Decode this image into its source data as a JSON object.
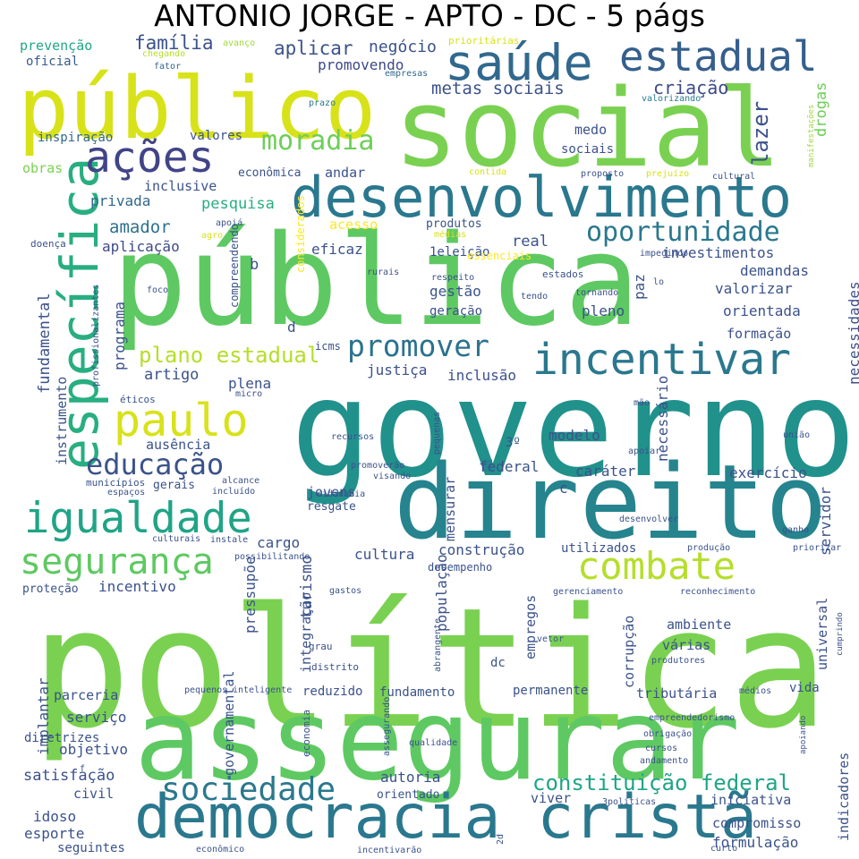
{
  "title": "ANTONIO JORGE - APTO - DC - 5 págs",
  "words": [
    {
      "text": "política",
      "color": "#7ad151"
    },
    {
      "text": "governo",
      "color": "#21918c"
    },
    {
      "text": "social",
      "color": "#7ad151"
    },
    {
      "text": "público",
      "color": "#d8e219"
    },
    {
      "text": "pública",
      "color": "#5ec962"
    },
    {
      "text": "assegurar",
      "color": "#5ec962"
    },
    {
      "text": "direito",
      "color": "#25848e"
    },
    {
      "text": "democracia cristã",
      "color": "#2a788e"
    },
    {
      "text": "desenvolvimento",
      "color": "#2a788e"
    },
    {
      "text": "saúde",
      "color": "#31688e"
    },
    {
      "text": "igualdade",
      "color": "#20a486"
    },
    {
      "text": "específica",
      "color": "#28ae80"
    },
    {
      "text": "ações",
      "color": "#414487"
    },
    {
      "text": "estadual",
      "color": "#355f8d"
    },
    {
      "text": "paulo",
      "color": "#d8e219"
    },
    {
      "text": "incentivar",
      "color": "#2a788e"
    },
    {
      "text": "combate",
      "color": "#b5de2b"
    },
    {
      "text": "segurança",
      "color": "#5ec962"
    },
    {
      "text": "sociedade",
      "color": "#2a788e"
    },
    {
      "text": "educação",
      "color": "#3b528b"
    },
    {
      "text": "promover",
      "color": "#2c728e"
    },
    {
      "text": "oportunidade",
      "color": "#2a788e"
    },
    {
      "text": "moradia",
      "color": "#6ece58"
    },
    {
      "text": "plano estadual",
      "color": "#b5de2b"
    },
    {
      "text": "constituição federal",
      "color": "#20a486"
    },
    {
      "text": "metas sociais",
      "color": "#3b528b"
    },
    {
      "text": "criação",
      "color": "#3e4a89"
    },
    {
      "text": "família",
      "color": "#3b528b"
    },
    {
      "text": "aplicar",
      "color": "#3b528b"
    },
    {
      "text": "negócio",
      "color": "#3b528b"
    },
    {
      "text": "promovendo",
      "color": "#3e4989"
    },
    {
      "text": "prevenção",
      "color": "#22a785"
    },
    {
      "text": "avanço",
      "color": "#a0da39"
    },
    {
      "text": "oficial",
      "color": "#365c8d"
    },
    {
      "text": "prioritárias",
      "color": "#d8e219"
    },
    {
      "text": "chegando",
      "color": "#b5de2b"
    },
    {
      "text": "fator",
      "color": "#31688e"
    },
    {
      "text": "empresas",
      "color": "#31688e"
    },
    {
      "text": "prazo",
      "color": "#2a788e"
    },
    {
      "text": "valorizando",
      "color": "#2a788e"
    },
    {
      "text": "manifestações",
      "color": "#9fda3a"
    },
    {
      "text": "inspiração",
      "color": "#31688e"
    },
    {
      "text": "valores",
      "color": "#3b528b"
    },
    {
      "text": "medo",
      "color": "#3b528b"
    },
    {
      "text": "sociais",
      "color": "#3b528b"
    },
    {
      "text": "lazer",
      "color": "#3b528b"
    },
    {
      "text": "drogas",
      "color": "#6ece58"
    },
    {
      "text": "obras",
      "color": "#7ad151"
    },
    {
      "text": "econômica",
      "color": "#3b528b"
    },
    {
      "text": "andar",
      "color": "#3b528b"
    },
    {
      "text": "contida",
      "color": "#d8e219"
    },
    {
      "text": "proposto",
      "color": "#3b528b"
    },
    {
      "text": "prejuízo",
      "color": "#d8e219"
    },
    {
      "text": "cultural",
      "color": "#3b528b"
    },
    {
      "text": "inclusive",
      "color": "#3b528b"
    },
    {
      "text": "privada",
      "color": "#31688e"
    },
    {
      "text": "pesquisa",
      "color": "#28ae80"
    },
    {
      "text": "apoiá",
      "color": "#3b528b"
    },
    {
      "text": "amador",
      "color": "#2c728e"
    },
    {
      "text": "acesso",
      "color": "#fde725"
    },
    {
      "text": "produtos",
      "color": "#3b528b"
    },
    {
      "text": "médias",
      "color": "#d8e219"
    },
    {
      "text": "agro",
      "color": "#d8e219"
    },
    {
      "text": "considerados",
      "color": "#fde725"
    },
    {
      "text": "real",
      "color": "#3b528b"
    },
    {
      "text": "1eleição",
      "color": "#3b528b"
    },
    {
      "text": "essenciais",
      "color": "#fde725"
    },
    {
      "text": "doença",
      "color": "#3b528b"
    },
    {
      "text": "aplicação",
      "color": "#3e4989"
    },
    {
      "text": "compreendendo",
      "color": "#3b528b"
    },
    {
      "text": "eficaz",
      "color": "#3b528b"
    },
    {
      "text": "investimentos",
      "color": "#3b528b"
    },
    {
      "text": "impedindo",
      "color": "#3b528b"
    },
    {
      "text": "b",
      "color": "#3b528b"
    },
    {
      "text": "rurais",
      "color": "#3b528b"
    },
    {
      "text": "respeito",
      "color": "#3b528b"
    },
    {
      "text": "estados",
      "color": "#3b528b"
    },
    {
      "text": "paz",
      "color": "#3b528b"
    },
    {
      "text": "demandas",
      "color": "#3b528b"
    },
    {
      "text": "lo",
      "color": "#3b528b"
    },
    {
      "text": "necessidades",
      "color": "#3b528b"
    },
    {
      "text": "fundamental",
      "color": "#3b528b"
    },
    {
      "text": "foco",
      "color": "#3b528b"
    },
    {
      "text": "programa",
      "color": "#3b528b"
    },
    {
      "text": "gestão",
      "color": "#3b528b"
    },
    {
      "text": "geração",
      "color": "#3b528b"
    },
    {
      "text": "tendo",
      "color": "#3b528b"
    },
    {
      "text": "tornando",
      "color": "#3b528b"
    },
    {
      "text": "valorizar",
      "color": "#3b528b"
    },
    {
      "text": "pleno",
      "color": "#3b528b"
    },
    {
      "text": "orientada",
      "color": "#3b528b"
    },
    {
      "text": "profissionalizantes",
      "color": "#3b528b"
    },
    {
      "text": "d",
      "color": "#3b528b"
    },
    {
      "text": "formação",
      "color": "#3b528b"
    },
    {
      "text": "instrumento",
      "color": "#3b528b"
    },
    {
      "text": "justiça",
      "color": "#3b528b"
    },
    {
      "text": "inclusão",
      "color": "#3b528b"
    },
    {
      "text": "artigo",
      "color": "#3b528b"
    },
    {
      "text": "plena",
      "color": "#3b528b"
    },
    {
      "text": "icms",
      "color": "#3b528b"
    },
    {
      "text": "éticos",
      "color": "#3b528b"
    },
    {
      "text": "micro",
      "color": "#3b528b"
    },
    {
      "text": "necessário",
      "color": "#3b528b"
    },
    {
      "text": "mão",
      "color": "#3b528b"
    },
    {
      "text": "recursos",
      "color": "#3b528b"
    },
    {
      "text": "modelo",
      "color": "#3b528b"
    },
    {
      "text": "união",
      "color": "#3b528b"
    },
    {
      "text": "ausência",
      "color": "#3b528b"
    },
    {
      "text": "3º",
      "color": "#3b528b"
    },
    {
      "text": "pequenas",
      "color": "#3b528b"
    },
    {
      "text": "apoiar",
      "color": "#3b528b"
    },
    {
      "text": "federal",
      "color": "#3b528b"
    },
    {
      "text": "caráter",
      "color": "#3b528b"
    },
    {
      "text": "exercício",
      "color": "#3b528b"
    },
    {
      "text": "gerais",
      "color": "#3b528b"
    },
    {
      "text": "alcance",
      "color": "#3b528b"
    },
    {
      "text": "promoverão",
      "color": "#3b528b"
    },
    {
      "text": "municípios",
      "color": "#3b528b"
    },
    {
      "text": "incluído",
      "color": "#3b528b"
    },
    {
      "text": "visando",
      "color": "#3b528b"
    },
    {
      "text": "c",
      "color": "#3b528b"
    },
    {
      "text": "espaços",
      "color": "#3b528b"
    },
    {
      "text": "cidadania",
      "color": "#3b528b"
    },
    {
      "text": "jovens",
      "color": "#3b528b"
    },
    {
      "text": "resgate",
      "color": "#3b528b"
    },
    {
      "text": "mensurar",
      "color": "#3b528b"
    },
    {
      "text": "servidor",
      "color": "#3b528b"
    },
    {
      "text": "desenvolver",
      "color": "#3b528b"
    },
    {
      "text": "ganho",
      "color": "#3b528b"
    },
    {
      "text": "culturais",
      "color": "#3b528b"
    },
    {
      "text": "instale",
      "color": "#3b528b"
    },
    {
      "text": "cargo",
      "color": "#3b528b"
    },
    {
      "text": "possibilitando",
      "color": "#3b528b"
    },
    {
      "text": "construção",
      "color": "#3b528b"
    },
    {
      "text": "utilizados",
      "color": "#3b528b"
    },
    {
      "text": "produção",
      "color": "#3b528b"
    },
    {
      "text": "priorizar",
      "color": "#3b528b"
    },
    {
      "text": "cultura",
      "color": "#3b528b"
    },
    {
      "text": "turismo",
      "color": "#3b528b"
    },
    {
      "text": "desempenho",
      "color": "#3b528b"
    },
    {
      "text": "proteção",
      "color": "#3b528b"
    },
    {
      "text": "incentivo",
      "color": "#3b528b"
    },
    {
      "text": "pressupõe",
      "color": "#3b528b"
    },
    {
      "text": "gastos",
      "color": "#3b528b"
    },
    {
      "text": "gerenciamento",
      "color": "#3b528b"
    },
    {
      "text": "reconhecimento",
      "color": "#3b528b"
    },
    {
      "text": "empregos",
      "color": "#3b528b"
    },
    {
      "text": "ambiente",
      "color": "#3b528b"
    },
    {
      "text": "integração",
      "color": "#3b528b"
    },
    {
      "text": "população",
      "color": "#3b528b"
    },
    {
      "text": "corrupção",
      "color": "#3b528b"
    },
    {
      "text": "universal",
      "color": "#3b528b"
    },
    {
      "text": "cumprindo",
      "color": "#3b528b"
    },
    {
      "text": "abrangente",
      "color": "#3b528b"
    },
    {
      "text": "vetor",
      "color": "#3b528b"
    },
    {
      "text": "várias",
      "color": "#3b528b"
    },
    {
      "text": "grau",
      "color": "#3b528b"
    },
    {
      "text": "distrito",
      "color": "#3b528b"
    },
    {
      "text": "dc",
      "color": "#3b528b"
    },
    {
      "text": "produtores",
      "color": "#3b528b"
    },
    {
      "text": "implantar",
      "color": "#3b528b"
    },
    {
      "text": "parceria",
      "color": "#3b528b"
    },
    {
      "text": "pequenos",
      "color": "#3b528b"
    },
    {
      "text": "inteligente",
      "color": "#3b528b"
    },
    {
      "text": "reduzido",
      "color": "#3b528b"
    },
    {
      "text": "fundamento",
      "color": "#3b528b"
    },
    {
      "text": "permanente",
      "color": "#3b528b"
    },
    {
      "text": "tributária",
      "color": "#3b528b"
    },
    {
      "text": "médios",
      "color": "#3b528b"
    },
    {
      "text": "vida",
      "color": "#3b528b"
    },
    {
      "text": "serviço",
      "color": "#3b528b"
    },
    {
      "text": "governamental",
      "color": "#3b528b"
    },
    {
      "text": "economia",
      "color": "#3b528b"
    },
    {
      "text": "assegurando",
      "color": "#3b528b"
    },
    {
      "text": "empreendedorismo",
      "color": "#3b528b"
    },
    {
      "text": "diretrizes",
      "color": "#3b528b"
    },
    {
      "text": "obrigação",
      "color": "#3b528b"
    },
    {
      "text": "objetivo",
      "color": "#3b528b"
    },
    {
      "text": "qualidade",
      "color": "#3b528b"
    },
    {
      "text": "cursos",
      "color": "#3b528b"
    },
    {
      "text": "apoiando",
      "color": "#3b528b"
    },
    {
      "text": "f",
      "color": "#3b528b"
    },
    {
      "text": "andamento",
      "color": "#3b528b"
    },
    {
      "text": "satisfação",
      "color": "#3b528b"
    },
    {
      "text": "autoria",
      "color": "#3b528b"
    },
    {
      "text": "civil",
      "color": "#3b528b"
    },
    {
      "text": "orientado",
      "color": "#3b528b"
    },
    {
      "text": "viver",
      "color": "#3b528b"
    },
    {
      "text": "3políticas",
      "color": "#3b528b"
    },
    {
      "text": "iniciativa",
      "color": "#3b528b"
    },
    {
      "text": "idoso",
      "color": "#3b528b"
    },
    {
      "text": "compromisso",
      "color": "#3b528b"
    },
    {
      "text": "indicadores",
      "color": "#3b528b"
    },
    {
      "text": "esporte",
      "color": "#3b528b"
    },
    {
      "text": "2d",
      "color": "#3b528b"
    },
    {
      "text": "formulação",
      "color": "#3b528b"
    },
    {
      "text": "seguintes",
      "color": "#3b528b"
    },
    {
      "text": "econômico",
      "color": "#3b528b"
    },
    {
      "text": "incentivarão",
      "color": "#3b528b"
    },
    {
      "text": "curto",
      "color": "#3b528b"
    }
  ]
}
